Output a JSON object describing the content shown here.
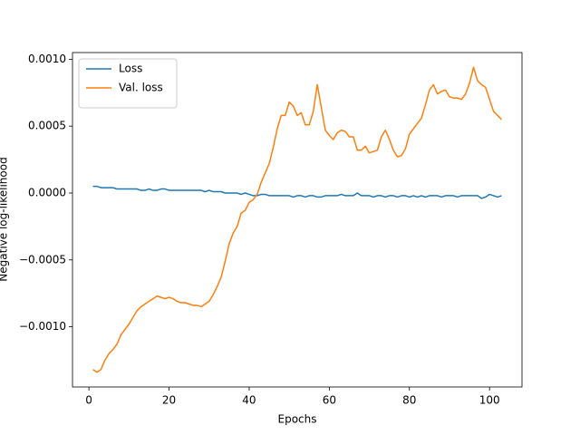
{
  "chart_data": {
    "type": "line",
    "xlabel": "Epochs",
    "ylabel": "Negative log-likelihood",
    "x": [
      1,
      2,
      3,
      4,
      5,
      6,
      7,
      8,
      9,
      10,
      11,
      12,
      13,
      14,
      15,
      16,
      17,
      18,
      19,
      20,
      21,
      22,
      23,
      24,
      25,
      26,
      27,
      28,
      29,
      30,
      31,
      32,
      33,
      34,
      35,
      36,
      37,
      38,
      39,
      40,
      41,
      42,
      43,
      44,
      45,
      46,
      47,
      48,
      49,
      50,
      51,
      52,
      53,
      54,
      55,
      56,
      57,
      58,
      59,
      60,
      61,
      62,
      63,
      64,
      65,
      66,
      67,
      68,
      69,
      70,
      71,
      72,
      73,
      74,
      75,
      76,
      77,
      78,
      79,
      80,
      81,
      82,
      83,
      84,
      85,
      86,
      87,
      88,
      89,
      90,
      91,
      92,
      93,
      94,
      95,
      96,
      97,
      98,
      99,
      100,
      101,
      102,
      103
    ],
    "series": [
      {
        "name": "Loss",
        "color": "#1f77b4",
        "values": [
          5e-05,
          5e-05,
          4e-05,
          4e-05,
          4e-05,
          4e-05,
          3e-05,
          3e-05,
          3e-05,
          3e-05,
          3e-05,
          3e-05,
          2e-05,
          2e-05,
          3e-05,
          2e-05,
          2e-05,
          3e-05,
          3e-05,
          2e-05,
          2e-05,
          2e-05,
          2e-05,
          2e-05,
          2e-05,
          2e-05,
          2e-05,
          2e-05,
          1e-05,
          2e-05,
          1e-05,
          1e-05,
          1e-05,
          0.0,
          0.0,
          0.0,
          0.0,
          -1e-05,
          0.0,
          -1e-05,
          -2e-05,
          -2e-05,
          -1e-05,
          -1e-05,
          -2e-05,
          -2e-05,
          -2e-05,
          -2e-05,
          -2e-05,
          -2e-05,
          -3e-05,
          -2e-05,
          -2e-05,
          -3e-05,
          -2e-05,
          -2e-05,
          -3e-05,
          -3e-05,
          -2e-05,
          -2e-05,
          -2e-05,
          -2e-05,
          -1e-05,
          -2e-05,
          -2e-05,
          -2e-05,
          0.0,
          -2e-05,
          -2e-05,
          -2e-05,
          -3e-05,
          -2e-05,
          -2e-05,
          -3e-05,
          -2e-05,
          -2e-05,
          -3e-05,
          -2e-05,
          -2e-05,
          -3e-05,
          -2e-05,
          -3e-05,
          -2e-05,
          -3e-05,
          -2e-05,
          -2e-05,
          -2e-05,
          -3e-05,
          -2e-05,
          -2e-05,
          -2e-05,
          -3e-05,
          -2e-05,
          -2e-05,
          -2e-05,
          -2e-05,
          -2e-05,
          -4e-05,
          -3e-05,
          -1e-05,
          -2e-05,
          -3e-05,
          -2e-05
        ]
      },
      {
        "name": "Val. loss",
        "color": "#ff7f0e",
        "values": [
          -0.00132,
          -0.00134,
          -0.00132,
          -0.00125,
          -0.0012,
          -0.00117,
          -0.00113,
          -0.00106,
          -0.00102,
          -0.00098,
          -0.00093,
          -0.00088,
          -0.00085,
          -0.00083,
          -0.00081,
          -0.00079,
          -0.00077,
          -0.00078,
          -0.00079,
          -0.00078,
          -0.00079,
          -0.00081,
          -0.00082,
          -0.00082,
          -0.00083,
          -0.00084,
          -0.00084,
          -0.00085,
          -0.00083,
          -0.00081,
          -0.00076,
          -0.0007,
          -0.00063,
          -0.00051,
          -0.00038,
          -0.0003,
          -0.00025,
          -0.00015,
          -0.00013,
          -7e-05,
          -5e-05,
          -1e-05,
          8e-05,
          0.00015,
          0.00022,
          0.00034,
          0.00048,
          0.00058,
          0.00058,
          0.00068,
          0.00065,
          0.00058,
          0.0006,
          0.00051,
          0.00051,
          0.00061,
          0.00081,
          0.00064,
          0.00047,
          0.00043,
          0.0004,
          0.00045,
          0.00047,
          0.00046,
          0.00042,
          0.00042,
          0.00032,
          0.00032,
          0.00035,
          0.0003,
          0.00031,
          0.00032,
          0.00042,
          0.00047,
          0.0004,
          0.00032,
          0.00027,
          0.00028,
          0.00033,
          0.00044,
          0.00048,
          0.00052,
          0.00056,
          0.00066,
          0.00077,
          0.00081,
          0.00074,
          0.00076,
          0.00077,
          0.00072,
          0.00071,
          0.00071,
          0.0007,
          0.00074,
          0.00082,
          0.00094,
          0.00084,
          0.00081,
          0.00079,
          0.0007,
          0.00061,
          0.00058,
          0.00055
        ]
      }
    ],
    "xlim": [
      -4.1,
      108.1
    ],
    "xticks": [
      0,
      20,
      40,
      60,
      80,
      100
    ],
    "ylim": [
      -0.00145,
      0.00105
    ],
    "yticks": [
      {
        "value": 0.001,
        "label": "0.0010"
      },
      {
        "value": 0.0005,
        "label": "0.0005"
      },
      {
        "value": 0,
        "label": "0.0000"
      },
      {
        "value": -0.0005,
        "label": "−0.0005"
      },
      {
        "value": -0.001,
        "label": "−0.0010"
      }
    ],
    "grid": false,
    "legend": "upper left"
  }
}
